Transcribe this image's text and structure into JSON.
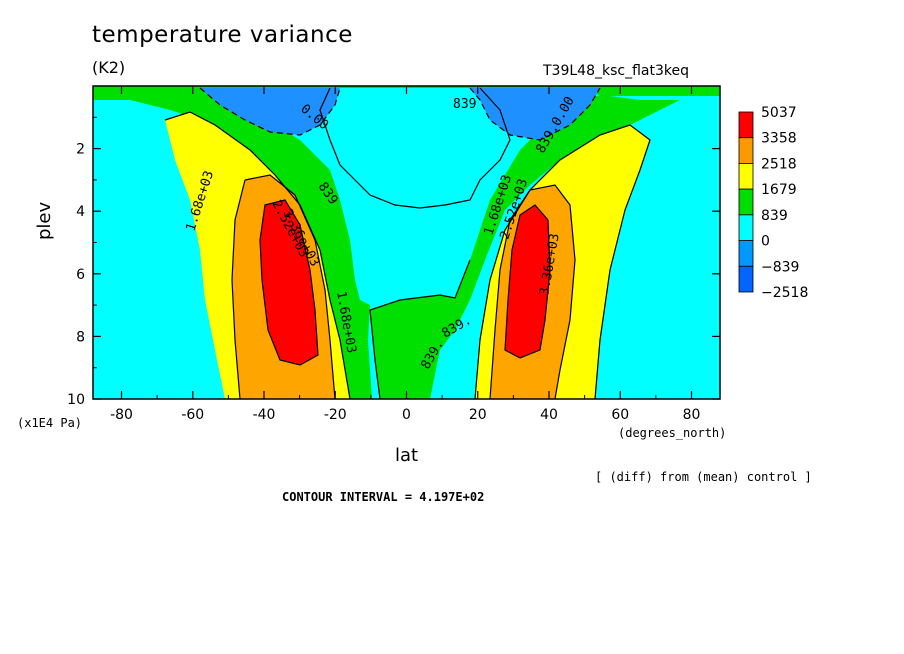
{
  "chart_data": {
    "type": "contour",
    "title": "temperature variance",
    "units": "(K2)",
    "run_label": "T39L48_ksc_flat3keq",
    "xlabel": "lat",
    "x_units": "(degrees_north)",
    "ylabel": "plev",
    "y_units": "(x1E4 Pa)",
    "xlim": [
      -88,
      88
    ],
    "ylim": [
      10,
      0
    ],
    "x_ticks": [
      "-80",
      "-60",
      "-40",
      "-20",
      "0",
      "20",
      "40",
      "60",
      "80"
    ],
    "x_tick_values": [
      -80,
      -60,
      -40,
      -20,
      0,
      20,
      40,
      60,
      80
    ],
    "y_ticks": [
      "2",
      "4",
      "6",
      "8",
      "10"
    ],
    "y_tick_values": [
      2,
      4,
      6,
      8,
      10
    ],
    "colorbar": {
      "labels": [
        "5037",
        "3358",
        "2518",
        "1679",
        "839",
        "0",
        "−839",
        "−2518"
      ],
      "colors": [
        "#ff0000",
        "#ff9900",
        "#ffff00",
        "#00dd00",
        "#00ffff",
        "#0099ff",
        "#0066ff"
      ]
    },
    "fill_colors": {
      "lt0": "#1e90ff",
      "c0": "#00ffff",
      "c839": "#00e000",
      "c1679": "#ffff00",
      "c2518": "#ffa500",
      "c3358": "#ff0000"
    },
    "contour_labels": [
      "0.00",
      "839",
      "839",
      "839.",
      "839.0.00",
      "1.68e+03",
      "2.52e+03",
      "3.36e+03",
      "1.68e+03",
      "839.",
      "1.68e+03",
      "2.52e+03",
      "3.36e+03"
    ],
    "features": [
      {
        "name": "SH max",
        "lat": -32,
        "plev": 6.2,
        "value_gt": 3358
      },
      {
        "name": "NH max",
        "lat": 34,
        "plev": 6.0,
        "value_gt": 3358
      },
      {
        "name": "SH upper min",
        "lat": -40,
        "plev": 0.8,
        "value_lt": 0
      },
      {
        "name": "NH upper min",
        "lat": 40,
        "plev": 0.8,
        "value_lt": 0
      }
    ],
    "contour_interval_text": "CONTOUR INTERVAL = 4.197E+02",
    "footnote": "[ (diff) from (mean) control ]"
  }
}
